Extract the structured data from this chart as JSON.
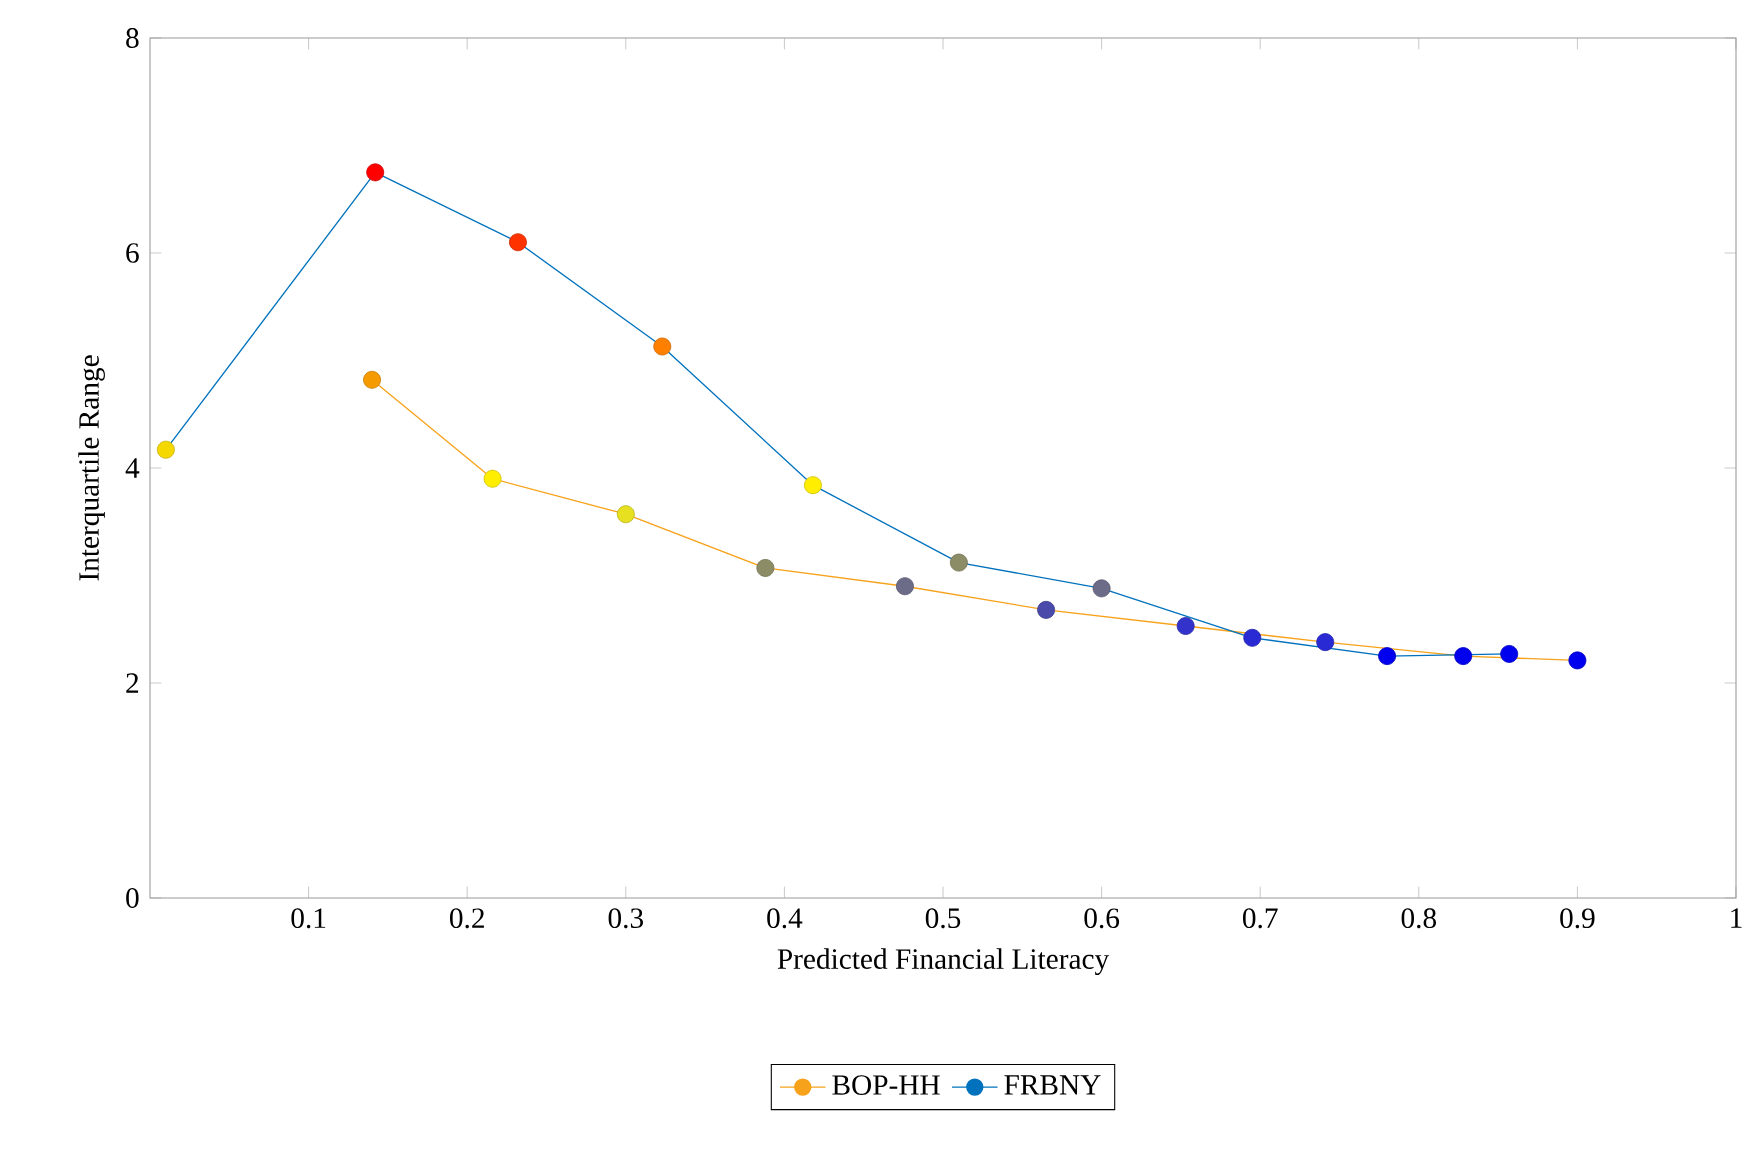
{
  "chart_data": {
    "type": "line",
    "xlabel": "Predicted Financial Literacy",
    "ylabel": "Interquartile Range",
    "xlim": [
      0,
      1
    ],
    "ylim": [
      0,
      8
    ],
    "xticks": [
      0.1,
      0.2,
      0.3,
      0.4,
      0.5,
      0.6,
      0.7,
      0.8,
      0.9,
      1
    ],
    "yticks": [
      0,
      2,
      4,
      6,
      8
    ],
    "grid": false,
    "legend": "bottom",
    "marker": "circle",
    "line_style": "solid",
    "series": [
      {
        "name": "BOP-HH",
        "color": "#f7a21b",
        "x": [
          0.14,
          0.216,
          0.3,
          0.388,
          0.476,
          0.565,
          0.653,
          0.741,
          0.828,
          0.9
        ],
        "values": [
          4.82,
          3.9,
          3.57,
          3.07,
          2.9,
          2.68,
          2.53,
          2.38,
          2.25,
          2.21
        ],
        "colors": [
          "#f59a00",
          "#ffee00",
          "#e6e020",
          "#8c8c66",
          "#6c6c88",
          "#4a4aaa",
          "#3333cc",
          "#2a2ad5",
          "#0000ee",
          "#0000ee"
        ]
      },
      {
        "name": "FRBNY",
        "color": "#0072bd",
        "x": [
          0.01,
          0.142,
          0.232,
          0.323,
          0.418,
          0.51,
          0.6,
          0.695,
          0.78,
          0.857
        ],
        "values": [
          4.17,
          6.75,
          6.1,
          5.13,
          3.84,
          3.12,
          2.88,
          2.42,
          2.25,
          2.27
        ],
        "colors": [
          "#f5d800",
          "#ff0000",
          "#ff3300",
          "#ff8000",
          "#ffee00",
          "#8c8c66",
          "#6c6c88",
          "#2a2ad5",
          "#0000ee",
          "#0000ee"
        ]
      }
    ]
  }
}
